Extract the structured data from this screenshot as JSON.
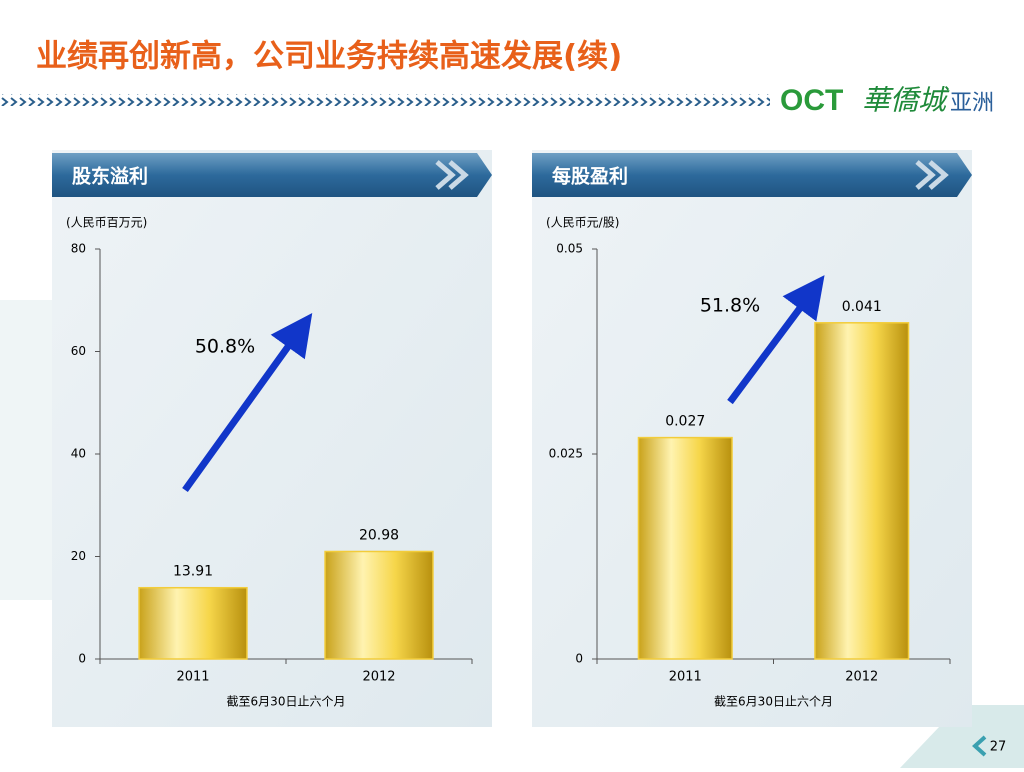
{
  "slide": {
    "title": "业绩再创新高，公司业务持续高速发展(续)",
    "logo_text": "OCT",
    "logo_cn": "華僑城",
    "logo_sub": "亚洲",
    "page_number": "27"
  },
  "chart_data": [
    {
      "type": "bar",
      "title": "股东溢利",
      "unit_label": "(人民币百万元)",
      "categories": [
        "2011",
        "2012"
      ],
      "values": [
        13.91,
        20.98
      ],
      "ylim": [
        0,
        80
      ],
      "yticks": [
        0,
        20,
        40,
        60,
        80
      ],
      "xlabel": "截至6月30日止六个月",
      "annotation": "50.8%",
      "color": "#f2cc3a"
    },
    {
      "type": "bar",
      "title": "每股盈利",
      "unit_label": "(人民币元/股)",
      "categories": [
        "2011",
        "2012"
      ],
      "values": [
        0.027,
        0.041
      ],
      "ylim": [
        0,
        0.05
      ],
      "yticks": [
        0,
        0.025,
        0.05
      ],
      "xlabel": "截至6月30日止六个月",
      "annotation": "51.8%",
      "color": "#f2cc3a"
    }
  ]
}
